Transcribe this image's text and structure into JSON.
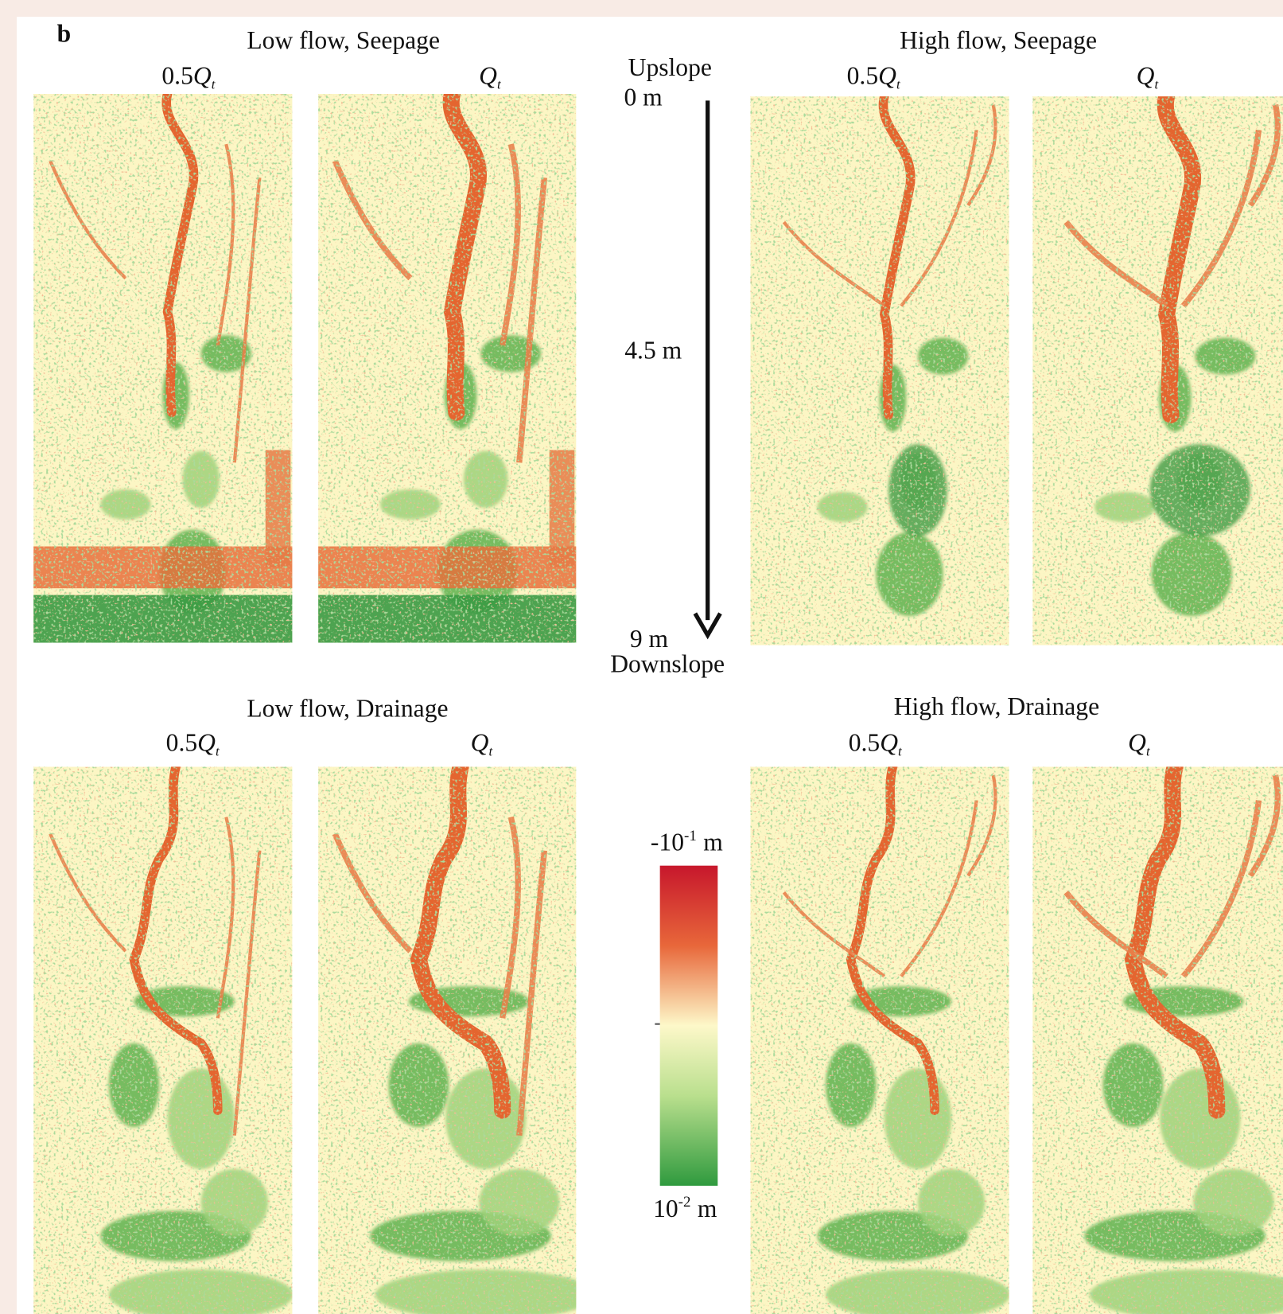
{
  "figure_label": "b",
  "groups": [
    {
      "title": "Low flow, Seepage",
      "panels": [
        {
          "prefix": "0.5",
          "symbol": "Q",
          "subscript": "t"
        },
        {
          "symbol": "Q",
          "subscript": "t"
        }
      ]
    },
    {
      "title": "High flow, Seepage",
      "panels": [
        {
          "prefix": "0.5",
          "symbol": "Q",
          "subscript": "t"
        },
        {
          "symbol": "Q",
          "subscript": "t"
        }
      ]
    },
    {
      "title": "Low flow, Drainage",
      "panels": [
        {
          "prefix": "0.5",
          "symbol": "Q",
          "subscript": "t"
        },
        {
          "symbol": "Q",
          "subscript": "t"
        }
      ]
    },
    {
      "title": "High flow, Drainage",
      "panels": [
        {
          "prefix": "0.5",
          "symbol": "Q",
          "subscript": "t"
        },
        {
          "symbol": "Q",
          "subscript": "t"
        }
      ]
    }
  ],
  "axis": {
    "top": "Upslope",
    "start": "0 m",
    "middle": "4.5 m",
    "end": "9 m",
    "bottom": "Downslope"
  },
  "colorbar": {
    "max": {
      "base": "-10",
      "exponent": "-1",
      "unit": "m"
    },
    "min": {
      "base": "10",
      "exponent": "-2",
      "unit": "m"
    }
  }
}
